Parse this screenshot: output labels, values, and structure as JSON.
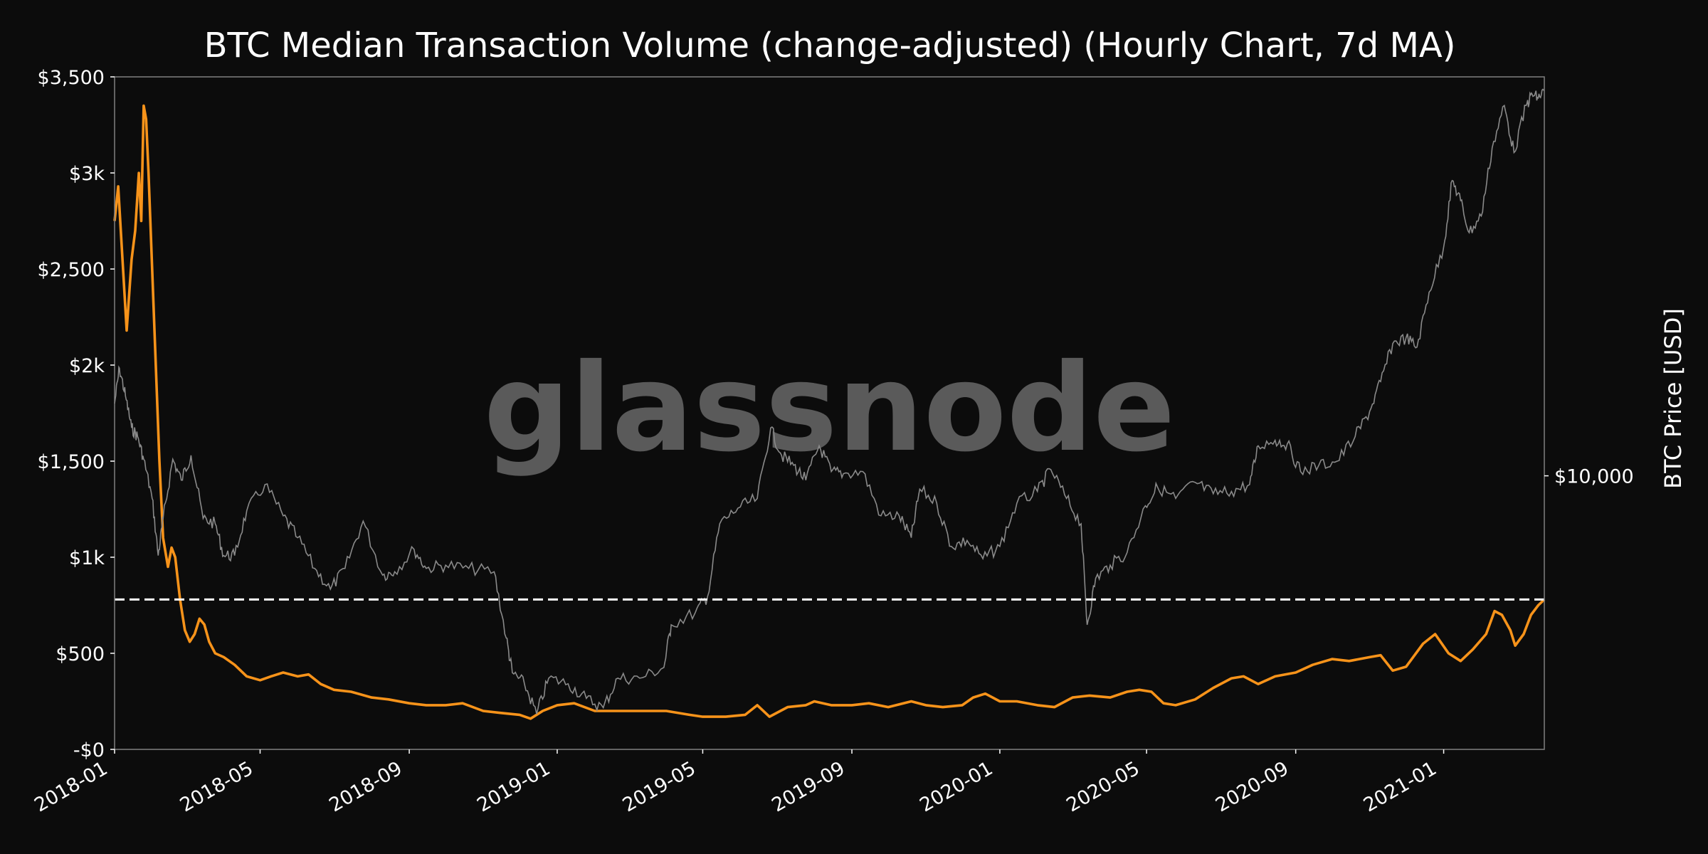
{
  "chart_data": {
    "type": "line",
    "title": "BTC Median Transaction Volume (change-adjusted) (Hourly Chart, 7d MA)",
    "watermark": "glassnode",
    "xlabel": "",
    "ylabel_left": "",
    "ylabel_right": "BTC Price [USD]",
    "x_range": [
      "2018-01-01",
      "2021-03-25"
    ],
    "x_ticks": [
      "2018-01",
      "2018-05",
      "2018-09",
      "2019-01",
      "2019-05",
      "2019-09",
      "2020-01",
      "2020-05",
      "2020-09",
      "2021-01"
    ],
    "ylim_left": [
      0,
      3500
    ],
    "y_ticks_left": [
      {
        "value": 0,
        "label": "-$0"
      },
      {
        "value": 500,
        "label": "$500"
      },
      {
        "value": 1000,
        "label": "$1k"
      },
      {
        "value": 1500,
        "label": "$1,500"
      },
      {
        "value": 2000,
        "label": "$2k"
      },
      {
        "value": 2500,
        "label": "$2,500"
      },
      {
        "value": 3000,
        "label": "$3k"
      },
      {
        "value": 3500,
        "label": "$3,500"
      }
    ],
    "y_scale_right": "log",
    "ylim_right": [
      2800,
      64000
    ],
    "y_ticks_right": [
      {
        "value": 10000,
        "label": "$10,000"
      }
    ],
    "reference_line": {
      "value": 780,
      "style": "dashed",
      "color": "#ffffff"
    },
    "colors": {
      "volume": "#f7931a",
      "price": "#8a8a8a",
      "background": "#0c0c0c",
      "frame": "#808080",
      "watermark": "#5a5a5a"
    },
    "grid": false,
    "series": [
      {
        "axis": "left",
        "points": [
          [
            "2018-01-01",
            2750
          ],
          [
            "2018-01-04",
            2930
          ],
          [
            "2018-01-08",
            2500
          ],
          [
            "2018-01-11",
            2180
          ],
          [
            "2018-01-15",
            2550
          ],
          [
            "2018-01-18",
            2700
          ],
          [
            "2018-01-21",
            3000
          ],
          [
            "2018-01-23",
            2750
          ],
          [
            "2018-01-25",
            3350
          ],
          [
            "2018-01-27",
            3280
          ],
          [
            "2018-01-29",
            3000
          ],
          [
            "2018-02-01",
            2500
          ],
          [
            "2018-02-04",
            2000
          ],
          [
            "2018-02-07",
            1500
          ],
          [
            "2018-02-10",
            1100
          ],
          [
            "2018-02-14",
            950
          ],
          [
            "2018-02-17",
            1050
          ],
          [
            "2018-02-20",
            1000
          ],
          [
            "2018-02-24",
            780
          ],
          [
            "2018-02-28",
            620
          ],
          [
            "2018-03-04",
            560
          ],
          [
            "2018-03-08",
            600
          ],
          [
            "2018-03-12",
            680
          ],
          [
            "2018-03-16",
            650
          ],
          [
            "2018-03-20",
            560
          ],
          [
            "2018-03-25",
            500
          ],
          [
            "2018-04-01",
            480
          ],
          [
            "2018-04-10",
            440
          ],
          [
            "2018-04-20",
            380
          ],
          [
            "2018-05-01",
            360
          ],
          [
            "2018-05-10",
            380
          ],
          [
            "2018-05-20",
            400
          ],
          [
            "2018-06-01",
            380
          ],
          [
            "2018-06-10",
            390
          ],
          [
            "2018-06-20",
            340
          ],
          [
            "2018-07-01",
            310
          ],
          [
            "2018-07-15",
            300
          ],
          [
            "2018-08-01",
            270
          ],
          [
            "2018-08-15",
            260
          ],
          [
            "2018-09-01",
            240
          ],
          [
            "2018-09-15",
            230
          ],
          [
            "2018-10-01",
            230
          ],
          [
            "2018-10-15",
            240
          ],
          [
            "2018-11-01",
            200
          ],
          [
            "2018-11-15",
            190
          ],
          [
            "2018-12-01",
            180
          ],
          [
            "2018-12-10",
            160
          ],
          [
            "2018-12-20",
            200
          ],
          [
            "2019-01-01",
            230
          ],
          [
            "2019-01-15",
            240
          ],
          [
            "2019-02-01",
            200
          ],
          [
            "2019-03-01",
            200
          ],
          [
            "2019-04-01",
            200
          ],
          [
            "2019-04-20",
            180
          ],
          [
            "2019-05-01",
            170
          ],
          [
            "2019-05-20",
            170
          ],
          [
            "2019-06-05",
            180
          ],
          [
            "2019-06-15",
            230
          ],
          [
            "2019-06-25",
            170
          ],
          [
            "2019-07-10",
            220
          ],
          [
            "2019-07-25",
            230
          ],
          [
            "2019-08-01",
            250
          ],
          [
            "2019-08-15",
            230
          ],
          [
            "2019-09-01",
            230
          ],
          [
            "2019-09-15",
            240
          ],
          [
            "2019-10-01",
            220
          ],
          [
            "2019-10-20",
            250
          ],
          [
            "2019-11-01",
            230
          ],
          [
            "2019-11-15",
            220
          ],
          [
            "2019-12-01",
            230
          ],
          [
            "2019-12-10",
            270
          ],
          [
            "2019-12-20",
            290
          ],
          [
            "2020-01-01",
            250
          ],
          [
            "2020-01-15",
            250
          ],
          [
            "2020-02-01",
            230
          ],
          [
            "2020-02-15",
            220
          ],
          [
            "2020-03-01",
            270
          ],
          [
            "2020-03-15",
            280
          ],
          [
            "2020-04-01",
            270
          ],
          [
            "2020-04-15",
            300
          ],
          [
            "2020-04-25",
            310
          ],
          [
            "2020-05-05",
            300
          ],
          [
            "2020-05-15",
            240
          ],
          [
            "2020-05-25",
            230
          ],
          [
            "2020-06-10",
            260
          ],
          [
            "2020-06-25",
            320
          ],
          [
            "2020-07-10",
            370
          ],
          [
            "2020-07-20",
            380
          ],
          [
            "2020-08-01",
            340
          ],
          [
            "2020-08-15",
            380
          ],
          [
            "2020-09-01",
            400
          ],
          [
            "2020-09-15",
            440
          ],
          [
            "2020-10-01",
            470
          ],
          [
            "2020-10-15",
            460
          ],
          [
            "2020-11-01",
            480
          ],
          [
            "2020-11-10",
            490
          ],
          [
            "2020-11-20",
            410
          ],
          [
            "2020-12-01",
            430
          ],
          [
            "2020-12-15",
            550
          ],
          [
            "2020-12-25",
            600
          ],
          [
            "2021-01-05",
            500
          ],
          [
            "2021-01-15",
            460
          ],
          [
            "2021-01-25",
            520
          ],
          [
            "2021-02-05",
            600
          ],
          [
            "2021-02-12",
            720
          ],
          [
            "2021-02-18",
            700
          ],
          [
            "2021-02-25",
            620
          ],
          [
            "2021-03-01",
            540
          ],
          [
            "2021-03-08",
            600
          ],
          [
            "2021-03-14",
            700
          ],
          [
            "2021-03-20",
            750
          ],
          [
            "2021-03-25",
            780
          ]
        ]
      },
      {
        "axis": "right",
        "points": [
          [
            "2018-01-01",
            14000
          ],
          [
            "2018-01-05",
            16500
          ],
          [
            "2018-01-10",
            14500
          ],
          [
            "2018-01-15",
            12500
          ],
          [
            "2018-01-20",
            12000
          ],
          [
            "2018-01-25",
            10800
          ],
          [
            "2018-02-01",
            9000
          ],
          [
            "2018-02-06",
            6900
          ],
          [
            "2018-02-10",
            8200
          ],
          [
            "2018-02-18",
            10800
          ],
          [
            "2018-02-25",
            9800
          ],
          [
            "2018-03-05",
            11000
          ],
          [
            "2018-03-15",
            8200
          ],
          [
            "2018-03-25",
            8000
          ],
          [
            "2018-04-01",
            6900
          ],
          [
            "2018-04-10",
            6900
          ],
          [
            "2018-04-20",
            8500
          ],
          [
            "2018-05-05",
            9600
          ],
          [
            "2018-05-20",
            8300
          ],
          [
            "2018-06-01",
            7500
          ],
          [
            "2018-06-15",
            6500
          ],
          [
            "2018-06-28",
            5900
          ],
          [
            "2018-07-10",
            6500
          ],
          [
            "2018-07-25",
            8100
          ],
          [
            "2018-08-10",
            6300
          ],
          [
            "2018-08-20",
            6400
          ],
          [
            "2018-09-05",
            7100
          ],
          [
            "2018-09-15",
            6500
          ],
          [
            "2018-10-01",
            6600
          ],
          [
            "2018-10-20",
            6500
          ],
          [
            "2018-11-10",
            6400
          ],
          [
            "2018-11-20",
            4700
          ],
          [
            "2018-11-25",
            4000
          ],
          [
            "2018-12-05",
            3800
          ],
          [
            "2018-12-15",
            3300
          ],
          [
            "2018-12-25",
            3900
          ],
          [
            "2019-01-10",
            3800
          ],
          [
            "2019-01-25",
            3550
          ],
          [
            "2019-02-08",
            3400
          ],
          [
            "2019-02-20",
            3900
          ],
          [
            "2019-03-10",
            3900
          ],
          [
            "2019-03-30",
            4100
          ],
          [
            "2019-04-05",
            5000
          ],
          [
            "2019-04-25",
            5300
          ],
          [
            "2019-05-05",
            5700
          ],
          [
            "2019-05-15",
            8000
          ],
          [
            "2019-05-30",
            8600
          ],
          [
            "2019-06-15",
            9000
          ],
          [
            "2019-06-26",
            12500
          ],
          [
            "2019-07-05",
            11000
          ],
          [
            "2019-07-15",
            10500
          ],
          [
            "2019-07-25",
            9800
          ],
          [
            "2019-08-05",
            11500
          ],
          [
            "2019-08-15",
            10200
          ],
          [
            "2019-08-25",
            10100
          ],
          [
            "2019-09-10",
            10200
          ],
          [
            "2019-09-25",
            8300
          ],
          [
            "2019-10-10",
            8300
          ],
          [
            "2019-10-20",
            7500
          ],
          [
            "2019-10-27",
            9400
          ],
          [
            "2019-11-10",
            8800
          ],
          [
            "2019-11-22",
            7200
          ],
          [
            "2019-12-05",
            7400
          ],
          [
            "2019-12-18",
            6800
          ],
          [
            "2020-01-01",
            7200
          ],
          [
            "2020-01-15",
            8800
          ],
          [
            "2020-02-01",
            9300
          ],
          [
            "2020-02-12",
            10300
          ],
          [
            "2020-02-25",
            9000
          ],
          [
            "2020-03-08",
            8000
          ],
          [
            "2020-03-13",
            5000
          ],
          [
            "2020-03-20",
            6200
          ],
          [
            "2020-04-01",
            6600
          ],
          [
            "2020-04-15",
            7000
          ],
          [
            "2020-04-30",
            8700
          ],
          [
            "2020-05-10",
            9500
          ],
          [
            "2020-05-25",
            9000
          ],
          [
            "2020-06-10",
            9700
          ],
          [
            "2020-06-25",
            9200
          ],
          [
            "2020-07-10",
            9300
          ],
          [
            "2020-07-25",
            9600
          ],
          [
            "2020-08-01",
            11500
          ],
          [
            "2020-08-15",
            11800
          ],
          [
            "2020-08-25",
            11600
          ],
          [
            "2020-09-05",
            10200
          ],
          [
            "2020-09-20",
            10500
          ],
          [
            "2020-10-05",
            10700
          ],
          [
            "2020-10-20",
            12000
          ],
          [
            "2020-11-01",
            13500
          ],
          [
            "2020-11-10",
            15500
          ],
          [
            "2020-11-20",
            18500
          ],
          [
            "2020-12-01",
            19000
          ],
          [
            "2020-12-10",
            18200
          ],
          [
            "2020-12-20",
            23500
          ],
          [
            "2021-01-01",
            29000
          ],
          [
            "2021-01-08",
            39500
          ],
          [
            "2021-01-15",
            36000
          ],
          [
            "2021-01-22",
            31000
          ],
          [
            "2021-02-01",
            33500
          ],
          [
            "2021-02-10",
            46000
          ],
          [
            "2021-02-20",
            56000
          ],
          [
            "2021-02-28",
            45000
          ],
          [
            "2021-03-10",
            56000
          ],
          [
            "2021-03-15",
            59000
          ],
          [
            "2021-03-20",
            58000
          ],
          [
            "2021-03-25",
            60000
          ]
        ]
      }
    ]
  }
}
